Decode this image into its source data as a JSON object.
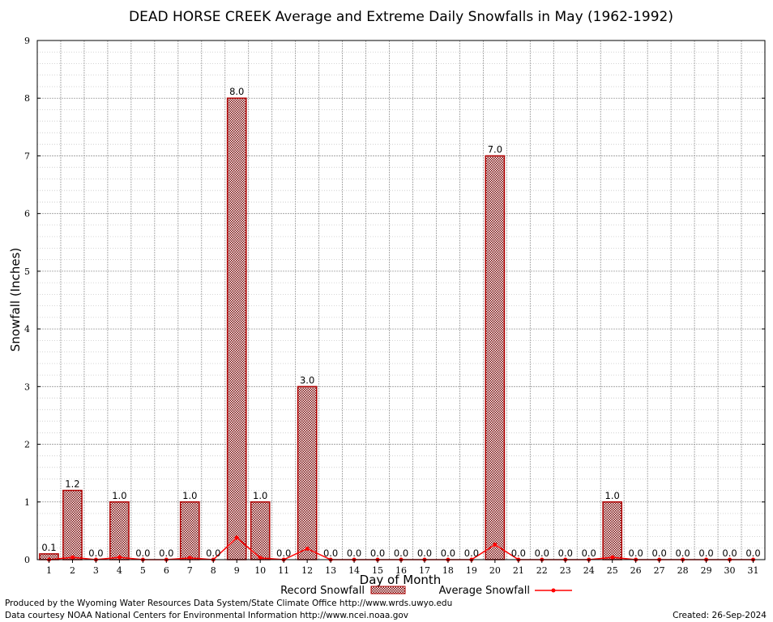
{
  "chart_data": {
    "type": "bar",
    "title": "DEAD HORSE CREEK Average and Extreme Daily Snowfalls in May (1962-1992)",
    "xlabel": "Day of Month",
    "ylabel": "Snowfall (Inches)",
    "ylim": [
      0,
      9
    ],
    "yticks": [
      "0",
      "1",
      "2",
      "3",
      "4",
      "5",
      "6",
      "7",
      "8",
      "9"
    ],
    "categories": [
      "1",
      "2",
      "3",
      "4",
      "5",
      "6",
      "7",
      "8",
      "9",
      "10",
      "11",
      "12",
      "13",
      "14",
      "15",
      "16",
      "17",
      "18",
      "19",
      "20",
      "21",
      "22",
      "23",
      "24",
      "25",
      "26",
      "27",
      "28",
      "29",
      "30",
      "31"
    ],
    "series": [
      {
        "name": "Record Snowfall",
        "kind": "bar",
        "values": [
          0.1,
          1.2,
          0.0,
          1.0,
          0.0,
          0.0,
          1.0,
          0.0,
          8.0,
          1.0,
          0.0,
          3.0,
          0.0,
          0.0,
          0.0,
          0.0,
          0.0,
          0.0,
          0.0,
          7.0,
          0.0,
          0.0,
          0.0,
          0.0,
          1.0,
          0.0,
          0.0,
          0.0,
          0.0,
          0.0,
          0.0
        ],
        "labels": [
          "0.1",
          "1.2",
          "0.0",
          "1.0",
          "0.0",
          "0.0",
          "1.0",
          "0.0",
          "8.0",
          "1.0",
          "0.0",
          "3.0",
          "0.0",
          "0.0",
          "0.0",
          "0.0",
          "0.0",
          "0.0",
          "0.0",
          "7.0",
          "0.0",
          "0.0",
          "0.0",
          "0.0",
          "1.0",
          "0.0",
          "0.0",
          "0.0",
          "0.0",
          "0.0",
          "0.0"
        ]
      },
      {
        "name": "Average Snowfall",
        "kind": "line",
        "values": [
          0.0,
          0.04,
          0.0,
          0.04,
          0.0,
          0.0,
          0.03,
          0.0,
          0.38,
          0.03,
          0.0,
          0.19,
          0.0,
          0.0,
          0.0,
          0.0,
          0.0,
          0.0,
          0.0,
          0.26,
          0.0,
          0.0,
          0.0,
          0.0,
          0.04,
          0.0,
          0.0,
          0.0,
          0.0,
          0.0,
          0.0
        ]
      }
    ],
    "legend": "bottom",
    "grid": true
  },
  "colors": {
    "bar_stroke": "#b00000",
    "bar_fill": "#d9c0c0",
    "line": "#ff0000",
    "grid": "#999999",
    "grid_minor": "#c8c8c8"
  },
  "footer": {
    "left_line1": "Produced by the Wyoming Water Resources Data System/State Climate Office http://www.wrds.uwyo.edu",
    "left_line2": "Data courtesy NOAA National Centers for Environmental Information http://www.ncei.noaa.gov",
    "right": "Created:  26-Sep-2024"
  }
}
